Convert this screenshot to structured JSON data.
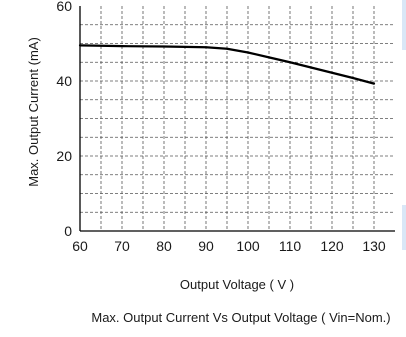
{
  "chart_data": {
    "type": "line",
    "title": "Max. Output Current  Vs Output Voltage ( Vin=Nom.)",
    "xlabel": "Output Voltage ( V )",
    "ylabel": "Max. Output Current (mA)",
    "xlim": [
      60,
      135
    ],
    "ylim": [
      0,
      60
    ],
    "x_ticks": [
      "60",
      "70",
      "80",
      "90",
      "100",
      "110",
      "120",
      "130"
    ],
    "y_ticks": [
      "0",
      "20",
      "40",
      "60"
    ],
    "grid": true,
    "series": [
      {
        "x": [
          60,
          70,
          80,
          85,
          90,
          95,
          100,
          105,
          110,
          115,
          120,
          125,
          130
        ],
        "y": [
          49.5,
          49.3,
          49.2,
          49.1,
          49,
          48.6,
          47.6,
          46.3,
          45,
          43.6,
          42.2,
          40.8,
          39.3
        ]
      }
    ]
  },
  "colors": {
    "line": "#000000",
    "grid": "#555555",
    "accent_edge": "#d9e7f7"
  }
}
